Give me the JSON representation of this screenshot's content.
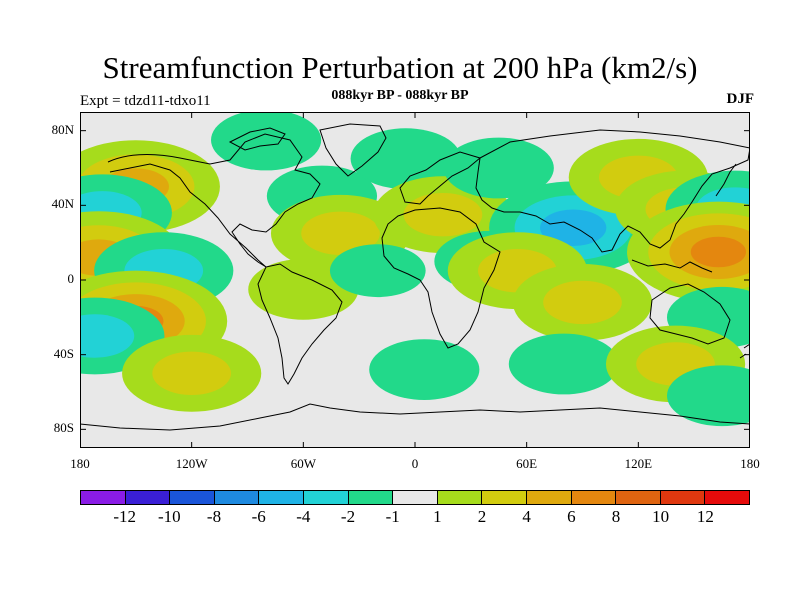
{
  "title": "Streamfunction Perturbation at 200 hPa (km2/s)",
  "subtitle": "088kyr BP - 088kyr BP",
  "expt_label": "Expt = tdzd11-tdxo11",
  "season": "DJF",
  "map": {
    "projection": "cylindrical-equidistant",
    "lon_range": [
      -180,
      180
    ],
    "lat_range": [
      -90,
      90
    ],
    "x_ticks": [
      {
        "value": -180,
        "label": "180"
      },
      {
        "value": -120,
        "label": "120W"
      },
      {
        "value": -60,
        "label": "60W"
      },
      {
        "value": 0,
        "label": "0"
      },
      {
        "value": 60,
        "label": "60E"
      },
      {
        "value": 120,
        "label": "120E"
      },
      {
        "value": 180,
        "label": "180"
      }
    ],
    "y_ticks": [
      {
        "value": 80,
        "label": "80N"
      },
      {
        "value": 40,
        "label": "40N"
      },
      {
        "value": 0,
        "label": "0"
      },
      {
        "value": -40,
        "label": "40S"
      },
      {
        "value": -80,
        "label": "80S"
      }
    ]
  },
  "colorbar": {
    "colors": [
      "#8a1ce6",
      "#3a1fd6",
      "#1a55d9",
      "#1e8ae0",
      "#1fb3e6",
      "#22d2d6",
      "#22d98a",
      "#e8e8e8",
      "#a6dc1c",
      "#d2cc0f",
      "#dfa90e",
      "#e4870f",
      "#df6410",
      "#e0380f",
      "#e60b0b"
    ],
    "labels": [
      "-12",
      "-10",
      "-8",
      "-6",
      "-4",
      "-2",
      "-1",
      "1",
      "2",
      "4",
      "6",
      "8",
      "10",
      "12"
    ]
  },
  "chart_data": {
    "type": "heatmap",
    "title": "Streamfunction Perturbation at 200 hPa (km2/s)",
    "subtitle": "088kyr BP - 088kyr BP",
    "units": "km2/s",
    "levels": [
      -12,
      -10,
      -8,
      -6,
      -4,
      -2,
      -1,
      1,
      2,
      4,
      6,
      8,
      10,
      12
    ],
    "anomaly_centers": [
      {
        "lon": -150,
        "lat": 50,
        "value": 6,
        "sign": "positive"
      },
      {
        "lon": -168,
        "lat": 36,
        "value": -4,
        "sign": "negative"
      },
      {
        "lon": -170,
        "lat": 12,
        "value": 6,
        "sign": "positive"
      },
      {
        "lon": -135,
        "lat": 5,
        "value": -4,
        "sign": "negative"
      },
      {
        "lon": -150,
        "lat": -22,
        "value": 7,
        "sign": "positive"
      },
      {
        "lon": -172,
        "lat": -30,
        "value": -4,
        "sign": "negative"
      },
      {
        "lon": -50,
        "lat": 45,
        "value": -2,
        "sign": "negative"
      },
      {
        "lon": -80,
        "lat": 75,
        "value": -2,
        "sign": "negative"
      },
      {
        "lon": -5,
        "lat": 65,
        "value": -2,
        "sign": "negative"
      },
      {
        "lon": -40,
        "lat": 25,
        "value": 4,
        "sign": "positive"
      },
      {
        "lon": -60,
        "lat": -5,
        "value": 2,
        "sign": "positive"
      },
      {
        "lon": -120,
        "lat": -50,
        "value": 4,
        "sign": "positive"
      },
      {
        "lon": -20,
        "lat": 5,
        "value": -1,
        "sign": "negative"
      },
      {
        "lon": 15,
        "lat": 35,
        "value": 4,
        "sign": "positive"
      },
      {
        "lon": 5,
        "lat": -48,
        "value": -2,
        "sign": "negative"
      },
      {
        "lon": 40,
        "lat": 10,
        "value": -2,
        "sign": "negative"
      },
      {
        "lon": 85,
        "lat": 28,
        "value": -6,
        "sign": "negative"
      },
      {
        "lon": 45,
        "lat": 60,
        "value": -2,
        "sign": "negative"
      },
      {
        "lon": 55,
        "lat": 5,
        "value": 4,
        "sign": "positive"
      },
      {
        "lon": 90,
        "lat": -12,
        "value": 4,
        "sign": "positive"
      },
      {
        "lon": 80,
        "lat": -45,
        "value": -2,
        "sign": "negative"
      },
      {
        "lon": 120,
        "lat": 55,
        "value": 4,
        "sign": "positive"
      },
      {
        "lon": 145,
        "lat": 38,
        "value": 4,
        "sign": "positive"
      },
      {
        "lon": 172,
        "lat": 38,
        "value": -4,
        "sign": "negative"
      },
      {
        "lon": 163,
        "lat": 15,
        "value": 7,
        "sign": "positive"
      },
      {
        "lon": 165,
        "lat": -20,
        "value": -2,
        "sign": "negative"
      },
      {
        "lon": 140,
        "lat": -45,
        "value": 4,
        "sign": "positive"
      },
      {
        "lon": 165,
        "lat": -62,
        "value": -2,
        "sign": "negative"
      }
    ]
  }
}
